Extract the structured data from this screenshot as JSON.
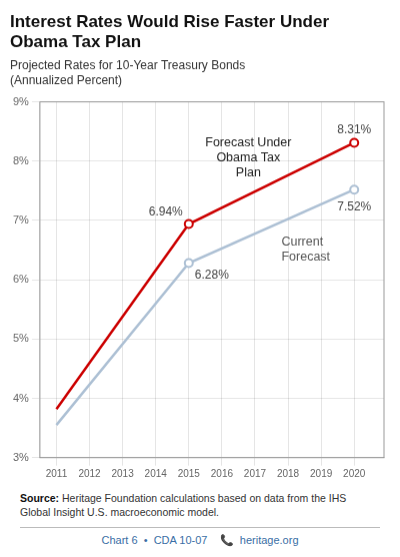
{
  "chart_data": {
    "type": "line",
    "title": "Interest Rates Would Rise Faster Under\nObama Tax Plan",
    "subtitle": "Projected Rates for 10-Year Treasury Bonds\n(Annualized Percent)",
    "x": [
      2011,
      2015,
      2020
    ],
    "series": [
      {
        "name": "Forecast Under\nObama Tax\nPlan",
        "color": "#cc0000",
        "values": [
          3.82,
          6.94,
          8.31
        ],
        "value_labels": [
          null,
          "6.94%",
          "8.31%"
        ]
      },
      {
        "name": "Current\nForecast",
        "color": "#adc0d4",
        "values": [
          3.55,
          6.28,
          7.52
        ],
        "value_labels": [
          null,
          "6.28%",
          "7.52%"
        ]
      }
    ],
    "xlim": [
      2010.5,
      2020.9
    ],
    "xticks": [
      2011,
      2012,
      2013,
      2014,
      2015,
      2016,
      2017,
      2018,
      2019,
      2020
    ],
    "ylim": [
      3.0,
      9.0
    ],
    "yticks": [
      {
        "value": 3,
        "label": "3%"
      },
      {
        "value": 4,
        "label": "4%"
      },
      {
        "value": 5,
        "label": "5%"
      },
      {
        "value": 6,
        "label": "6%"
      },
      {
        "value": 7,
        "label": "7%"
      },
      {
        "value": 8,
        "label": "8%"
      },
      {
        "value": 9,
        "label": "9%"
      }
    ],
    "grid": true,
    "source_label": "Source:",
    "source": "Heritage Foundation calculations based on data from the IHS\nGlobal Insight U.S. macroeconomic model.",
    "footer": "Chart 6  •  CDA 10-07    📞  heritage.org"
  }
}
